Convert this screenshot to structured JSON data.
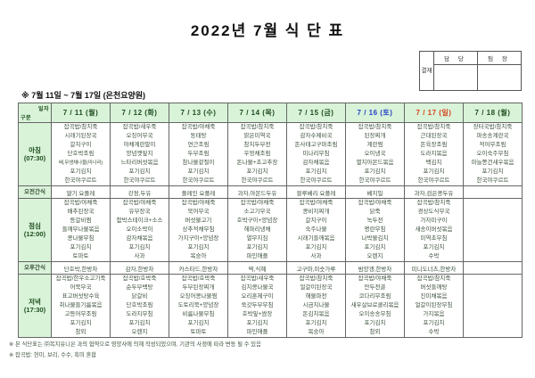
{
  "title": "2022년 7월 식 단 표",
  "subtitle": "※ 7월 11일 ~ 7월 17일 (은천요양원)",
  "approval": {
    "label": "결재",
    "columns": [
      "담 당",
      "팀 장"
    ]
  },
  "corner": {
    "top": "일자",
    "bottom": "구분"
  },
  "colors": {
    "header_bg": "#d9f3d9",
    "border": "#666666",
    "weekday_text": "#1d4d1d",
    "saturday_text": "#2743c7",
    "sunday_text": "#d3441c",
    "menu_text": "#3c503c"
  },
  "days": [
    {
      "label": "7 / 11 (월)",
      "tone": "wd"
    },
    {
      "label": "7 / 12 (화)",
      "tone": "wd"
    },
    {
      "label": "7 / 13 (수)",
      "tone": "wd"
    },
    {
      "label": "7 / 14 (목)",
      "tone": "wd"
    },
    {
      "label": "7 / 15 (금)",
      "tone": "wd"
    },
    {
      "label": "7 / 16 (토)",
      "tone": "sat"
    },
    {
      "label": "7 / 17 (일)",
      "tone": "sun"
    },
    {
      "label": "7 / 18 (월)",
      "tone": "wd"
    }
  ],
  "rows": [
    {
      "label": "아침",
      "time": "(07:30)",
      "type": "meal",
      "cells": [
        [
          "잡곡밥/참치죽",
          "시래기된장국",
          "갈치구이",
          "단호박조림",
          "배,무생채나물(미나리)",
          "포기김치",
          "한국야쿠르트"
        ],
        [
          "잡곡밥/새우죽",
          "오징어무국",
          "야채계란말이",
          "양념깻잎지",
          "느타리버섯볶음",
          "포기김치",
          "한국야쿠르트"
        ],
        [
          "잡곡밥/야채죽",
          "동태탕",
          "연근조림",
          "두부조림",
          "참나물겉절이",
          "포기김치",
          "한국야쿠르트"
        ],
        [
          "잡곡밥/참치죽",
          "맑은미역국",
          "참치두부전",
          "우엉채조림",
          "돈나물+초고추장",
          "포기김치",
          "한국야쿠르트"
        ],
        [
          "잡곡밥/참치죽",
          "감자수제비국",
          "돈사태고구마조림",
          "미나리무침",
          "감자채볶음",
          "포기김치",
          "한국야쿠르트"
        ],
        [
          "잡곡밥/참치죽",
          "된장찌개",
          "계란찜",
          "오이냉국",
          "멸치아몬드볶음",
          "포기김치",
          "한국야쿠르트"
        ],
        [
          "잡곡밥/참치죽",
          "근대된장국",
          "돈육장조림",
          "도라지볶음",
          "백김치",
          "포기김치",
          "한국야쿠르트"
        ],
        [
          "장터국밥/참치죽",
          "파송송계란국",
          "적어무조림",
          "오이숙주무침",
          "마늘쫑건새우볶음",
          "포기김치",
          "한국야쿠르트"
        ]
      ]
    },
    {
      "label": "오전간식",
      "time": "",
      "type": "snack",
      "cells": [
        "딸기 요플레",
        "강정,두유",
        "플레인 요플레",
        "과자,아몬드두유",
        "블루베리 요플레",
        "베지밀",
        "과자,검은콩두유",
        ""
      ]
    },
    {
      "label": "점심",
      "time": "(12:00)",
      "type": "meal",
      "cells": [
        [
          "잡곡밥/야채죽",
          "배추된장국",
          "등갈비찜",
          "들깨무나물볶음",
          "콩나물무침",
          "포기김치",
          "토마토"
        ],
        [
          "잡곡밥/야채죽",
          "유부장국",
          "함박스테이크+소스",
          "오이소박이",
          "감자채볶음",
          "포기김치",
          "사과"
        ],
        [
          "잡곡밥/야채죽",
          "북어무국",
          "버섯불고기",
          "상추적채무침",
          "가지구이+양념장",
          "포기김치",
          "복숭아"
        ],
        [
          "잡곡밥/야채죽",
          "소고기무국",
          "호박구이+양념장",
          "해파리냉채",
          "열무지짐",
          "포기김치",
          "파인애플"
        ],
        [
          "잡곡밥/야채죽",
          "콩비지찌개",
          "갈치구이",
          "숙주나물",
          "시래기들깨볶음",
          "포기김치",
          "사과"
        ],
        [
          "잡곡밥/야채죽",
          "닭죽",
          "녹두전",
          "명란무침",
          "나박물김치",
          "포기김치",
          "오렌지"
        ],
        [
          "잡곡밥/참치죽",
          "경상도식무국",
          "가자미구이",
          "새송이버섯볶음",
          "미역초무침",
          "포기김치",
          "수박"
        ],
        []
      ]
    },
    {
      "label": "오후간식",
      "time": "",
      "type": "snack",
      "cells": [
        "단호박,한방차",
        "감자,한방차",
        "카스타드,한방차",
        "떡,식혜",
        "고구마,미숫가루",
        "밤양갱,한방차",
        "미니도너츠,한방차",
        ""
      ]
    },
    {
      "label": "저녁",
      "time": "(17:30)",
      "type": "meal",
      "cells": [
        [
          "잡곡밥/한우소고기죽",
          "어묵무국",
          "표고버섯탕수육",
          "취나물들기름볶음",
          "고등어무조림",
          "포기김치",
          "참외"
        ],
        [
          "잡곡밥/호박죽",
          "순두부백탕",
          "닭갈비",
          "단호박조림",
          "도라지무침",
          "포기김치",
          "오렌지"
        ],
        [
          "잡곡밥/호박죽",
          "두부된장찌개",
          "오징어콩나물찜",
          "도토리묵+양념장",
          "비름나물무침",
          "포기김치",
          "토마토"
        ],
        [
          "잡곡밥/새우죽",
          "김치콩나물국",
          "오리훈제구이",
          "쑥갓두부무침",
          "호박잎+쌈장",
          "포기김치",
          "파인애플"
        ],
        [
          "잡곡밥/참치죽",
          "얼갈이된장국",
          "해물파전",
          "시금치나물",
          "돈김치볶음",
          "포기김치",
          "복숭아"
        ],
        [
          "잡곡밥/야채죽",
          "만두전골",
          "코다리무조림",
          "새우살브로콜리볶음",
          "오이송송무침",
          "포기김치",
          "참외"
        ],
        [
          "잡곡밥/참치죽",
          "버섯들깨탕",
          "진미채볶음",
          "얼갈이된장무침",
          "가지볶음",
          "포기김치",
          "수박"
        ],
        []
      ]
    }
  ],
  "notes": [
    "※ 본 식단표는 ㈜복지유니온 과의 협약으로 영양사에 의해 작성되었으며, 기관의 사정에 따라 변동 될 수 있음",
    "※ 잡곡밥: 현미, 보리, 수수, 흑미 혼합"
  ]
}
